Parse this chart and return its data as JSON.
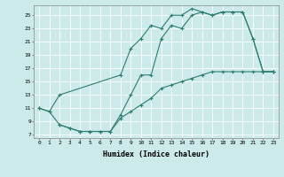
{
  "xlabel": "Humidex (Indice chaleur)",
  "bg_color": "#cceaea",
  "grid_color": "#ffffff",
  "line_color": "#2d7d6e",
  "xlim": [
    -0.5,
    23.5
  ],
  "ylim": [
    6.5,
    26.5
  ],
  "yticks": [
    7,
    9,
    11,
    13,
    15,
    17,
    19,
    21,
    23,
    25
  ],
  "xticks": [
    0,
    1,
    2,
    3,
    4,
    5,
    6,
    7,
    8,
    9,
    10,
    11,
    12,
    13,
    14,
    15,
    16,
    17,
    18,
    19,
    20,
    21,
    22,
    23
  ],
  "line1_x": [
    0,
    1,
    2,
    8,
    9,
    10,
    11,
    12,
    13,
    14,
    15,
    16,
    17,
    18,
    19,
    20,
    21,
    22,
    23
  ],
  "line1_y": [
    11,
    10.5,
    13,
    16,
    20,
    21.5,
    23.5,
    23,
    25,
    25,
    26,
    25.5,
    25,
    25.5,
    25.5,
    25.5,
    21.5,
    16.5,
    16.5
  ],
  "line2_x": [
    0,
    1,
    2,
    3,
    4,
    5,
    6,
    7,
    8,
    9,
    10,
    11,
    12,
    13,
    14,
    15,
    16,
    17,
    18,
    19,
    20,
    21,
    22,
    23
  ],
  "line2_y": [
    11,
    10.5,
    8.5,
    8,
    7.5,
    7.5,
    7.5,
    7.5,
    10,
    13,
    16,
    16,
    21.5,
    23.5,
    23,
    25,
    25.5,
    25,
    25.5,
    25.5,
    25.5,
    21.5,
    16.5,
    16.5
  ],
  "line3_x": [
    2,
    3,
    4,
    5,
    6,
    7,
    8,
    9,
    10,
    11,
    12,
    13,
    14,
    15,
    16,
    17,
    18,
    19,
    20,
    21,
    22,
    23
  ],
  "line3_y": [
    8.5,
    8,
    7.5,
    7.5,
    7.5,
    7.5,
    9.5,
    10.5,
    11.5,
    12.5,
    14,
    14.5,
    15,
    15.5,
    16,
    16.5,
    16.5,
    16.5,
    16.5,
    16.5,
    16.5,
    16.5
  ]
}
